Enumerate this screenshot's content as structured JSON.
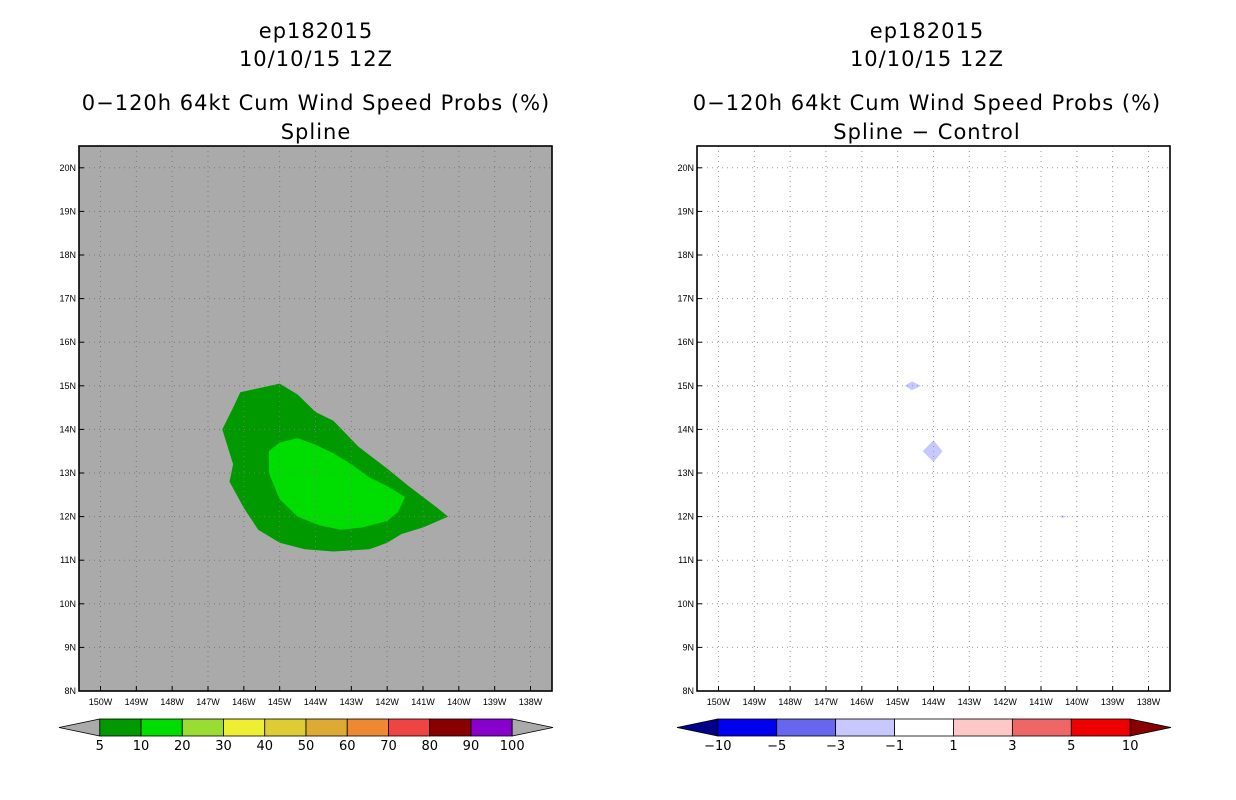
{
  "colors": {
    "background_field": "#aaaaaa",
    "grid": "#888888"
  },
  "chart_data": [
    {
      "type": "heatmap",
      "storm_id": "ep182015",
      "datetime": "10/10/15 12Z",
      "title": "0−120h 64kt Cum Wind Speed Probs (%)",
      "subtitle": "Spline",
      "xlim": [
        -150.6,
        -137.4
      ],
      "ylim": [
        8,
        20.5
      ],
      "x_ticks": [
        "150W",
        "149W",
        "148W",
        "147W",
        "146W",
        "145W",
        "144W",
        "143W",
        "142W",
        "141W",
        "140W",
        "139W",
        "138W"
      ],
      "y_ticks": [
        "8N",
        "9N",
        "10N",
        "11N",
        "12N",
        "13N",
        "14N",
        "15N",
        "16N",
        "17N",
        "18N",
        "19N",
        "20N"
      ],
      "grid": true,
      "fill": "#aaaaaa",
      "contours": [
        {
          "level": 5,
          "color": "#009900",
          "lonlat": [
            [
              -146.6,
              14.0
            ],
            [
              -146.3,
              14.5
            ],
            [
              -146.1,
              14.85
            ],
            [
              -145.0,
              15.05
            ],
            [
              -144.5,
              14.8
            ],
            [
              -144.0,
              14.4
            ],
            [
              -143.5,
              14.2
            ],
            [
              -142.8,
              13.6
            ],
            [
              -142.0,
              13.1
            ],
            [
              -141.4,
              12.7
            ],
            [
              -140.6,
              12.2
            ],
            [
              -140.3,
              12.0
            ],
            [
              -141.0,
              11.75
            ],
            [
              -141.6,
              11.6
            ],
            [
              -142.0,
              11.4
            ],
            [
              -142.5,
              11.25
            ],
            [
              -143.5,
              11.2
            ],
            [
              -144.3,
              11.25
            ],
            [
              -145.0,
              11.4
            ],
            [
              -145.6,
              11.7
            ],
            [
              -146.0,
              12.2
            ],
            [
              -146.4,
              12.8
            ],
            [
              -146.3,
              13.2
            ],
            [
              -146.6,
              14.0
            ]
          ]
        },
        {
          "level": 10,
          "color": "#00dd00",
          "lonlat": [
            [
              -145.3,
              13.0
            ],
            [
              -145.3,
              13.5
            ],
            [
              -145.0,
              13.7
            ],
            [
              -144.5,
              13.8
            ],
            [
              -144.0,
              13.65
            ],
            [
              -143.5,
              13.45
            ],
            [
              -143.0,
              13.2
            ],
            [
              -142.5,
              12.9
            ],
            [
              -142.0,
              12.7
            ],
            [
              -141.5,
              12.45
            ],
            [
              -141.7,
              12.1
            ],
            [
              -142.0,
              11.9
            ],
            [
              -142.7,
              11.75
            ],
            [
              -143.3,
              11.7
            ],
            [
              -143.9,
              11.8
            ],
            [
              -144.5,
              12.0
            ],
            [
              -145.0,
              12.4
            ],
            [
              -145.3,
              13.0
            ]
          ]
        }
      ],
      "colorbar": {
        "labels": [
          "5",
          "10",
          "20",
          "30",
          "40",
          "50",
          "60",
          "70",
          "80",
          "90",
          "100"
        ],
        "colors": [
          "#aaaaaa",
          "#009900",
          "#00dd00",
          "#99dd33",
          "#eeee33",
          "#ddcc33",
          "#ddaa33",
          "#ee8833",
          "#ee4444",
          "#880000",
          "#8800cc",
          "#aaaaaa"
        ]
      }
    },
    {
      "type": "heatmap",
      "storm_id": "ep182015",
      "datetime": "10/10/15 12Z",
      "title": "0−120h 64kt Cum Wind Speed Probs (%)",
      "subtitle": "Spline − Control",
      "xlim": [
        -150.6,
        -137.4
      ],
      "ylim": [
        8,
        20.5
      ],
      "x_ticks": [
        "150W",
        "149W",
        "148W",
        "147W",
        "146W",
        "145W",
        "144W",
        "143W",
        "142W",
        "141W",
        "140W",
        "139W",
        "138W"
      ],
      "y_ticks": [
        "8N",
        "9N",
        "10N",
        "11N",
        "12N",
        "13N",
        "14N",
        "15N",
        "16N",
        "17N",
        "18N",
        "19N",
        "20N"
      ],
      "grid": true,
      "fill": "#ffffff",
      "contours": [
        {
          "level": -1,
          "color": "#c8c8ff",
          "lonlat": [
            [
              -144.8,
              15.0
            ],
            [
              -144.6,
              15.1
            ],
            [
              -144.35,
              15.0
            ],
            [
              -144.6,
              14.9
            ],
            [
              -144.8,
              15.0
            ]
          ]
        },
        {
          "level": -1,
          "color": "#c8c8ff",
          "lonlat": [
            [
              -144.3,
              13.5
            ],
            [
              -144.0,
              13.75
            ],
            [
              -143.75,
              13.5
            ],
            [
              -144.0,
              13.25
            ],
            [
              -144.3,
              13.5
            ]
          ]
        },
        {
          "level": -1,
          "color": "#c8c8ff",
          "lonlat": [
            [
              -140.5,
              12.0
            ],
            [
              -140.4,
              12.03
            ],
            [
              -140.3,
              12.0
            ],
            [
              -140.4,
              11.97
            ],
            [
              -140.5,
              12.0
            ]
          ]
        }
      ],
      "colorbar": {
        "labels": [
          "−10",
          "−5",
          "−3",
          "−1",
          "1",
          "3",
          "5",
          "10"
        ],
        "colors": [
          "#000088",
          "#0000ee",
          "#6666ee",
          "#c8c8ff",
          "#ffffff",
          "#ffc8c8",
          "#ee6666",
          "#ee0000",
          "#880000"
        ]
      }
    }
  ]
}
